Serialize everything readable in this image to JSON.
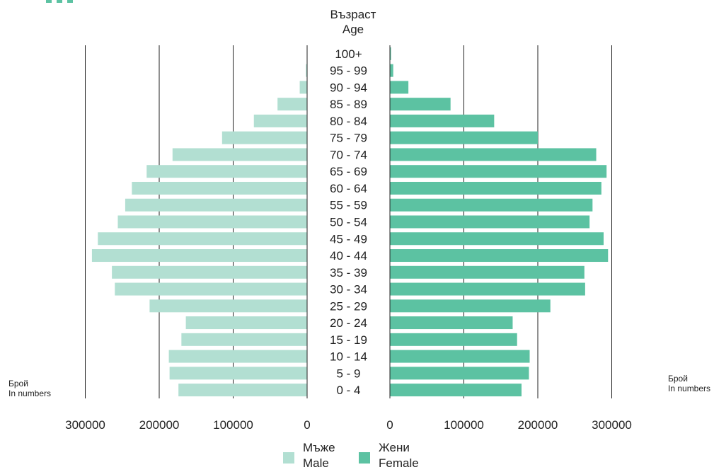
{
  "colors": {
    "male": "#b2dfd2",
    "female": "#5cc2a2",
    "gridline": "#222222",
    "text": "#222222"
  },
  "header": {
    "title_bg": "Възраст",
    "title_en": "Age"
  },
  "unit": {
    "left_bg": "Брой",
    "left_en": "In numbers",
    "right_bg": "Брой",
    "right_en": "In numbers"
  },
  "legend": {
    "male_bg": "Мъже",
    "male_en": "Male",
    "female_bg": "Жени",
    "female_en": "Female"
  },
  "chart_data": {
    "type": "bar",
    "orientation": "horizontal",
    "style": "population-pyramid",
    "categories": [
      "100+",
      "95 - 99",
      "90 - 94",
      "85 - 89",
      "80 - 84",
      "75 - 79",
      "70 - 74",
      "65 - 69",
      "60 - 64",
      "55 - 59",
      "50 - 54",
      "45 - 49",
      "40 - 44",
      "35 - 39",
      "30 - 34",
      "25 - 29",
      "20 - 24",
      "15 - 19",
      "10 - 14",
      "5 - 9",
      "0 - 4"
    ],
    "series": [
      {
        "name": "Мъже / Male",
        "side": "left",
        "values": [
          300,
          1600,
          10000,
          40000,
          72000,
          115000,
          182000,
          217000,
          237000,
          246000,
          256000,
          283000,
          291000,
          264000,
          260000,
          213000,
          164000,
          170000,
          187000,
          186000,
          174000
        ]
      },
      {
        "name": "Жени / Female",
        "side": "right",
        "values": [
          1500,
          4500,
          25000,
          82000,
          141000,
          200000,
          279000,
          293000,
          286000,
          274000,
          270000,
          289000,
          295000,
          263000,
          264000,
          217000,
          166000,
          172000,
          189000,
          188000,
          178000
        ]
      }
    ],
    "xticks_left": [
      "300000",
      "200000",
      "100000",
      "0"
    ],
    "xticks_right": [
      "0",
      "100000",
      "200000",
      "300000"
    ],
    "xlim": [
      0,
      300000
    ],
    "grid": true
  }
}
